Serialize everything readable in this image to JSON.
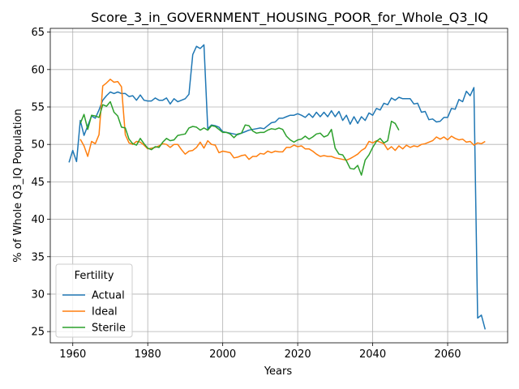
{
  "chart_data": {
    "type": "line",
    "title": "Score_3_in_GOVERNMENT_HOUSING_POOR_for_Whole_Q3_IQ",
    "xlabel": "Years",
    "ylabel": "% of Whole Q3_IQ Population",
    "xlim": [
      1954,
      2076
    ],
    "ylim": [
      23.5,
      65.5
    ],
    "x_ticks": [
      1960,
      1980,
      2000,
      2020,
      2040,
      2060
    ],
    "y_ticks": [
      25,
      30,
      35,
      40,
      45,
      50,
      55,
      60,
      65
    ],
    "grid": true,
    "legend": {
      "title": "Fertility",
      "position": "lower-left"
    },
    "series": [
      {
        "name": "Actual",
        "color": "#1f77b4",
        "x": [
          1959,
          1960,
          1961,
          1962,
          1963,
          1964,
          1965,
          1966,
          1967,
          1968,
          1969,
          1970,
          1971,
          1972,
          1973,
          1974,
          1975,
          1976,
          1977,
          1978,
          1979,
          1980,
          1981,
          1982,
          1983,
          1984,
          1985,
          1986,
          1987,
          1988,
          1989,
          1990,
          1991,
          1992,
          1993,
          1994,
          1995,
          1996,
          1997,
          1998,
          1999,
          2000,
          2001,
          2002,
          2003,
          2004,
          2005,
          2006,
          2007,
          2008,
          2009,
          2010,
          2011,
          2012,
          2013,
          2014,
          2015,
          2016,
          2017,
          2018,
          2019,
          2020,
          2021,
          2022,
          2023,
          2024,
          2025,
          2026,
          2027,
          2028,
          2029,
          2030,
          2031,
          2032,
          2033,
          2034,
          2035,
          2036,
          2037,
          2038,
          2039,
          2040,
          2041,
          2042,
          2043,
          2044,
          2045,
          2046,
          2047,
          2048,
          2049,
          2050,
          2051,
          2052,
          2053,
          2054,
          2055,
          2056,
          2057,
          2058,
          2059,
          2060,
          2061,
          2062,
          2063,
          2064,
          2065,
          2066,
          2067,
          2068,
          2069,
          2070
        ],
        "values": [
          47.6,
          49.2,
          47.7,
          53.2,
          51.2,
          52.5,
          53.8,
          53.5,
          54.6,
          55.9,
          56.5,
          57.0,
          56.8,
          57.0,
          56.8,
          56.8,
          56.4,
          56.5,
          55.9,
          56.6,
          55.9,
          55.8,
          55.8,
          56.2,
          55.9,
          55.9,
          56.2,
          55.4,
          56.1,
          55.7,
          55.9,
          56.1,
          56.7,
          62.0,
          63.1,
          62.8,
          63.3,
          52.1,
          52.6,
          52.5,
          52.3,
          51.7,
          51.6,
          51.5,
          51.4,
          51.3,
          51.5,
          51.7,
          51.9,
          52.0,
          52.1,
          52.2,
          52.1,
          52.5,
          52.9,
          53.0,
          53.5,
          53.5,
          53.7,
          53.9,
          53.9,
          54.1,
          53.9,
          53.6,
          54.1,
          53.6,
          54.3,
          53.7,
          54.3,
          53.7,
          54.5,
          53.7,
          54.4,
          53.2,
          53.9,
          52.7,
          53.7,
          52.8,
          53.7,
          53.2,
          54.2,
          53.9,
          54.8,
          54.6,
          55.5,
          55.3,
          56.2,
          55.9,
          56.3,
          56.1,
          56.1,
          56.1,
          55.4,
          55.5,
          54.3,
          54.4,
          53.3,
          53.4,
          53.0,
          53.1,
          53.6,
          53.6,
          54.8,
          54.7,
          56.0,
          55.7,
          57.1,
          56.5,
          57.6,
          26.8,
          27.2,
          25.3
        ]
      },
      {
        "name": "Ideal",
        "color": "#ff7f0e",
        "x": [
          1962,
          1963,
          1964,
          1965,
          1966,
          1967,
          1968,
          1969,
          1970,
          1971,
          1972,
          1973,
          1974,
          1975,
          1976,
          1977,
          1978,
          1979,
          1980,
          1981,
          1982,
          1983,
          1984,
          1985,
          1986,
          1987,
          1988,
          1989,
          1990,
          1991,
          1992,
          1993,
          1994,
          1995,
          1996,
          1997,
          1998,
          1999,
          2000,
          2001,
          2002,
          2003,
          2004,
          2005,
          2006,
          2007,
          2008,
          2009,
          2010,
          2011,
          2012,
          2013,
          2014,
          2015,
          2016,
          2017,
          2018,
          2019,
          2020,
          2021,
          2022,
          2023,
          2024,
          2025,
          2026,
          2027,
          2028,
          2029,
          2030,
          2031,
          2032,
          2033,
          2034,
          2035,
          2036,
          2037,
          2038,
          2039,
          2040,
          2041,
          2042,
          2043,
          2044,
          2045,
          2046,
          2047,
          2048,
          2049,
          2050,
          2051,
          2052,
          2053,
          2054,
          2055,
          2056,
          2057,
          2058,
          2059,
          2060,
          2061,
          2062,
          2063,
          2064,
          2065,
          2066,
          2067,
          2068,
          2069,
          2070
        ],
        "values": [
          50.7,
          49.8,
          48.4,
          50.4,
          50.1,
          51.3,
          57.8,
          58.2,
          58.7,
          58.3,
          58.4,
          57.7,
          51.3,
          50.2,
          50.0,
          50.4,
          50.3,
          49.9,
          49.4,
          49.5,
          49.6,
          49.8,
          50.1,
          50.0,
          49.6,
          50.0,
          50.0,
          49.3,
          48.7,
          49.1,
          49.2,
          49.6,
          50.3,
          49.5,
          50.5,
          50.0,
          49.9,
          48.9,
          49.1,
          49.0,
          48.9,
          48.2,
          48.3,
          48.5,
          48.6,
          48.0,
          48.4,
          48.4,
          48.8,
          48.7,
          49.1,
          48.9,
          49.1,
          49.0,
          49.0,
          49.6,
          49.6,
          49.9,
          49.7,
          49.8,
          49.4,
          49.4,
          49.1,
          48.7,
          48.4,
          48.5,
          48.4,
          48.4,
          48.2,
          48.1,
          48.0,
          47.9,
          48.1,
          48.4,
          48.7,
          49.2,
          49.5,
          50.4,
          50.2,
          50.5,
          50.3,
          50.1,
          49.3,
          49.7,
          49.2,
          49.8,
          49.4,
          49.9,
          49.6,
          49.8,
          49.7,
          50.0,
          50.1,
          50.3,
          50.5,
          51.0,
          50.7,
          51.0,
          50.6,
          51.1,
          50.8,
          50.6,
          50.7,
          50.3,
          50.4,
          49.9,
          50.2,
          50.1,
          50.4
        ]
      },
      {
        "name": "Sterile",
        "color": "#2ca02c",
        "x": [
          1962,
          1963,
          1964,
          1965,
          1966,
          1967,
          1968,
          1969,
          1970,
          1971,
          1972,
          1973,
          1974,
          1975,
          1976,
          1977,
          1978,
          1979,
          1980,
          1981,
          1982,
          1983,
          1984,
          1985,
          1986,
          1987,
          1988,
          1989,
          1990,
          1991,
          1992,
          1993,
          1994,
          1995,
          1996,
          1997,
          1998,
          1999,
          2000,
          2001,
          2002,
          2003,
          2004,
          2005,
          2006,
          2007,
          2008,
          2009,
          2010,
          2011,
          2012,
          2013,
          2014,
          2015,
          2016,
          2017,
          2018,
          2019,
          2020,
          2021,
          2022,
          2023,
          2024,
          2025,
          2026,
          2027,
          2028,
          2029,
          2030,
          2031,
          2032,
          2033,
          2034,
          2035,
          2036,
          2037,
          2038,
          2039,
          2040,
          2041,
          2042,
          2043,
          2044,
          2045,
          2046,
          2047
        ],
        "values": [
          52.8,
          54.0,
          52.0,
          53.9,
          53.8,
          53.6,
          55.3,
          55.1,
          55.7,
          54.3,
          53.8,
          52.3,
          52.2,
          50.7,
          50.1,
          49.9,
          50.8,
          50.1,
          49.5,
          49.3,
          49.7,
          49.6,
          50.3,
          50.8,
          50.5,
          50.6,
          51.2,
          51.3,
          51.4,
          52.2,
          52.4,
          52.3,
          51.9,
          52.2,
          51.9,
          52.5,
          52.4,
          52.0,
          51.6,
          51.6,
          51.4,
          50.9,
          51.4,
          51.5,
          52.6,
          52.5,
          51.8,
          51.5,
          51.6,
          51.6,
          51.9,
          52.1,
          52.0,
          52.2,
          52.0,
          51.1,
          50.6,
          50.3,
          50.6,
          50.7,
          51.1,
          50.7,
          51.0,
          51.4,
          51.5,
          51.0,
          51.2,
          52.0,
          49.5,
          48.7,
          48.6,
          47.8,
          46.8,
          46.7,
          47.2,
          45.9,
          47.9,
          48.6,
          49.6,
          50.4,
          50.8,
          50.2,
          50.5,
          53.1,
          52.8,
          51.9
        ]
      }
    ]
  }
}
